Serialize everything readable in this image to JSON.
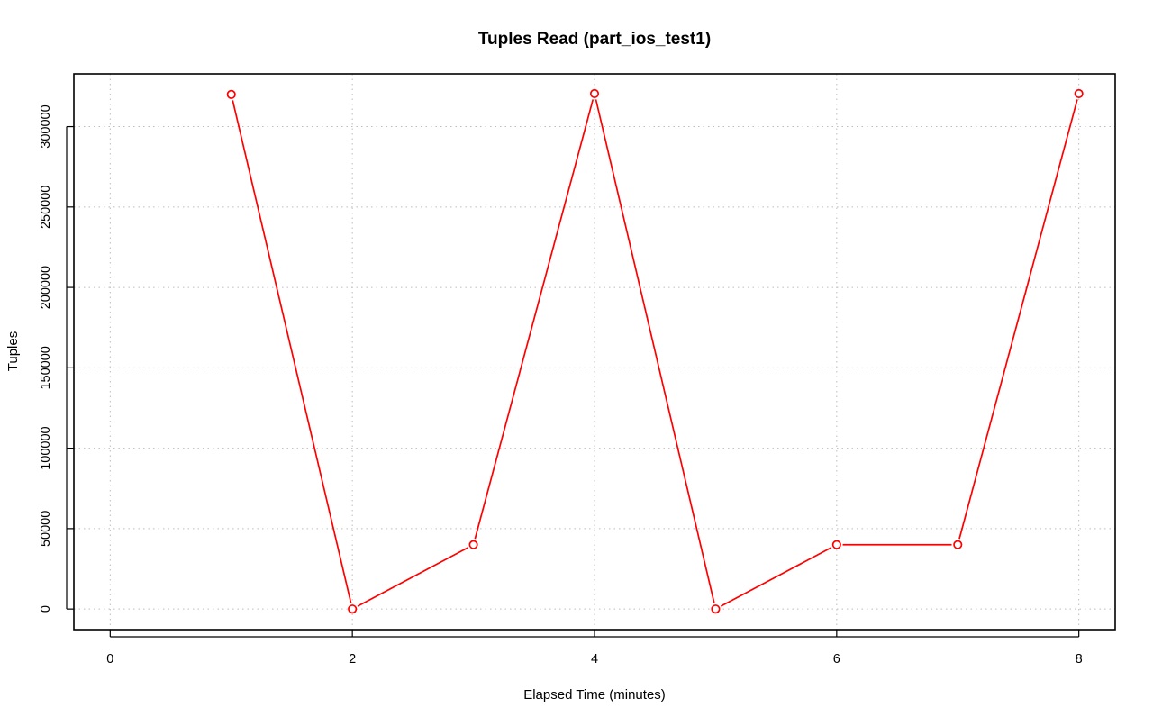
{
  "chart_data": {
    "type": "line",
    "title": "Tuples Read (part_ios_test1)",
    "xlabel": "Elapsed Time (minutes)",
    "ylabel": "Tuples",
    "xlim": [
      -0.3,
      8.3
    ],
    "ylim": [
      -12800,
      332800
    ],
    "x_ticks": [
      "0",
      "2",
      "4",
      "6",
      "8"
    ],
    "y_ticks": [
      "0",
      "50000",
      "100000",
      "150000",
      "200000",
      "250000",
      "300000"
    ],
    "grid": true,
    "series": [
      {
        "color": "#ff0000",
        "marker": "open-circle",
        "x": [
          1,
          2,
          3,
          4,
          5,
          6,
          7,
          8
        ],
        "values": [
          320000,
          0,
          40000,
          320500,
          0,
          40000,
          40000,
          320500
        ]
      }
    ]
  }
}
